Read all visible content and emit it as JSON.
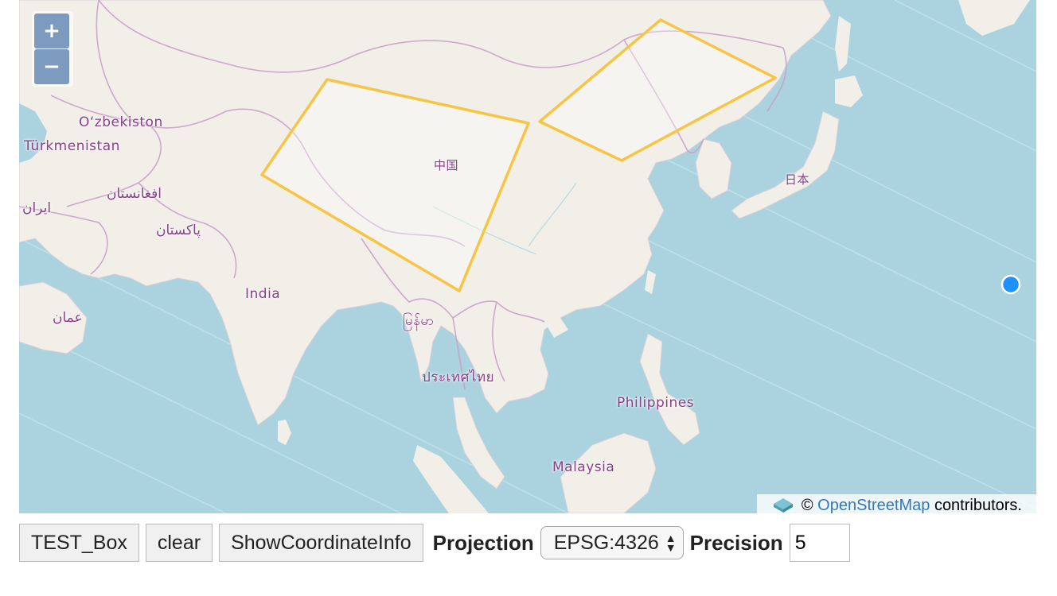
{
  "map": {
    "labels": {
      "uzbekistan": "O‘zbekiston",
      "turkmenistan": "Türkmenistan",
      "afghanistan": "افغانستان",
      "iran": "ایران",
      "pakistan": "پاکستان",
      "oman": "عمان",
      "india": "India",
      "china": "中国",
      "japan": "日本",
      "myanmar": "မြန်မာ",
      "thailand": "ประเทศไทย",
      "philippines": "Philippines",
      "malaysia": "Malaysia"
    },
    "zoom": {
      "in_label": "+",
      "out_label": "−"
    },
    "attribution": {
      "copyright": "©",
      "link_text": "OpenStreetMap",
      "suffix": "contributors."
    },
    "colors": {
      "water": "#aad3df",
      "land": "#f2efe9",
      "border": "#c9a1c9",
      "box": "#f7c545",
      "point": "#1e90ff"
    }
  },
  "toolbar": {
    "test_box_label": "TEST_Box",
    "clear_label": "clear",
    "show_coord_label": "ShowCoordinateInfo",
    "projection_label": "Projection",
    "projection_value": "EPSG:4326",
    "precision_label": "Precision",
    "precision_value": "5"
  }
}
